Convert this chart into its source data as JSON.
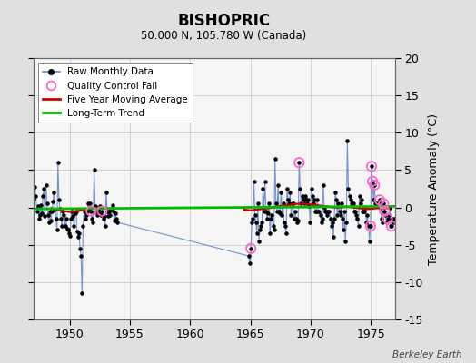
{
  "title": "BISHOPRIC",
  "subtitle": "50.000 N, 105.780 W (Canada)",
  "ylabel": "Temperature Anomaly (°C)",
  "watermark": "Berkeley Earth",
  "ylim": [
    -15,
    20
  ],
  "yticks": [
    -15,
    -10,
    -5,
    0,
    5,
    10,
    15,
    20
  ],
  "xlim": [
    1947,
    1977
  ],
  "xticks": [
    1950,
    1955,
    1960,
    1965,
    1970,
    1975
  ],
  "bg_color": "#e0e0e0",
  "plot_bg": "#f5f5f5",
  "raw_line_color": "#6688cc",
  "raw_dot_color": "#000000",
  "ma_color": "#cc0000",
  "trend_color": "#00bb00",
  "qc_color": "#ff66cc",
  "raw_monthly": [
    [
      1947.042,
      1.2
    ],
    [
      1947.125,
      2.8
    ],
    [
      1947.208,
      1.5
    ],
    [
      1947.292,
      -0.5
    ],
    [
      1947.375,
      0.2
    ],
    [
      1947.458,
      -1.5
    ],
    [
      1947.542,
      -1.0
    ],
    [
      1947.625,
      0.3
    ],
    [
      1947.708,
      -0.8
    ],
    [
      1947.792,
      1.5
    ],
    [
      1947.875,
      2.5
    ],
    [
      1947.958,
      -1.2
    ],
    [
      1948.042,
      3.0
    ],
    [
      1948.125,
      0.5
    ],
    [
      1948.208,
      -1.0
    ],
    [
      1948.292,
      -2.0
    ],
    [
      1948.375,
      -0.5
    ],
    [
      1948.458,
      -1.8
    ],
    [
      1948.542,
      -0.5
    ],
    [
      1948.625,
      0.8
    ],
    [
      1948.708,
      2.0
    ],
    [
      1948.792,
      -0.3
    ],
    [
      1948.875,
      -1.5
    ],
    [
      1948.958,
      -3.0
    ],
    [
      1949.042,
      6.0
    ],
    [
      1949.125,
      1.0
    ],
    [
      1949.208,
      -0.2
    ],
    [
      1949.292,
      -1.5
    ],
    [
      1949.375,
      -2.5
    ],
    [
      1949.458,
      -0.5
    ],
    [
      1949.542,
      -1.0
    ],
    [
      1949.625,
      -2.5
    ],
    [
      1949.708,
      -1.5
    ],
    [
      1949.792,
      -2.8
    ],
    [
      1949.875,
      -3.0
    ],
    [
      1949.958,
      -3.5
    ],
    [
      1950.042,
      -3.8
    ],
    [
      1950.125,
      -1.5
    ],
    [
      1950.208,
      -0.5
    ],
    [
      1950.292,
      -1.2
    ],
    [
      1950.375,
      -2.5
    ],
    [
      1950.458,
      -0.8
    ],
    [
      1950.542,
      -0.5
    ],
    [
      1950.625,
      -3.2
    ],
    [
      1950.708,
      -4.0
    ],
    [
      1950.792,
      -3.5
    ],
    [
      1950.875,
      -5.5
    ],
    [
      1950.958,
      -6.5
    ],
    [
      1951.042,
      -11.5
    ],
    [
      1951.125,
      -2.5
    ],
    [
      1951.208,
      -0.5
    ],
    [
      1951.292,
      -1.5
    ],
    [
      1951.375,
      -1.0
    ],
    [
      1951.458,
      -0.5
    ],
    [
      1951.542,
      0.5
    ],
    [
      1951.625,
      -0.2
    ],
    [
      1951.708,
      0.5
    ],
    [
      1951.792,
      -0.5
    ],
    [
      1951.875,
      -1.5
    ],
    [
      1951.958,
      -2.0
    ],
    [
      1952.042,
      5.0
    ],
    [
      1952.125,
      0.2
    ],
    [
      1952.208,
      -0.5
    ],
    [
      1952.292,
      -1.0
    ],
    [
      1952.375,
      -0.3
    ],
    [
      1952.458,
      -0.8
    ],
    [
      1952.542,
      0.2
    ],
    [
      1952.625,
      -1.0
    ],
    [
      1952.708,
      -0.5
    ],
    [
      1952.792,
      -1.5
    ],
    [
      1952.875,
      -1.2
    ],
    [
      1952.958,
      -2.5
    ],
    [
      1953.042,
      2.0
    ],
    [
      1953.125,
      -0.5
    ],
    [
      1953.208,
      -1.2
    ],
    [
      1953.292,
      -0.5
    ],
    [
      1953.375,
      -1.0
    ],
    [
      1953.458,
      -0.3
    ],
    [
      1953.542,
      0.3
    ],
    [
      1953.625,
      -0.5
    ],
    [
      1953.708,
      -1.8
    ],
    [
      1953.792,
      -0.8
    ],
    [
      1953.875,
      -1.5
    ],
    [
      1953.958,
      -2.0
    ],
    [
      1964.875,
      -6.5
    ],
    [
      1964.958,
      -7.5
    ],
    [
      1965.042,
      -5.5
    ],
    [
      1965.125,
      -2.0
    ],
    [
      1965.208,
      -1.5
    ],
    [
      1965.292,
      3.5
    ],
    [
      1965.375,
      -1.0
    ],
    [
      1965.458,
      -2.0
    ],
    [
      1965.542,
      -3.5
    ],
    [
      1965.625,
      0.5
    ],
    [
      1965.708,
      -4.5
    ],
    [
      1965.792,
      -3.0
    ],
    [
      1965.875,
      -2.5
    ],
    [
      1965.958,
      -2.0
    ],
    [
      1966.042,
      2.5
    ],
    [
      1966.125,
      -0.5
    ],
    [
      1966.208,
      3.5
    ],
    [
      1966.292,
      -0.5
    ],
    [
      1966.375,
      -1.5
    ],
    [
      1966.458,
      -0.8
    ],
    [
      1966.542,
      0.5
    ],
    [
      1966.625,
      -3.5
    ],
    [
      1966.708,
      -1.5
    ],
    [
      1966.792,
      -1.0
    ],
    [
      1966.875,
      -2.5
    ],
    [
      1966.958,
      -3.0
    ],
    [
      1967.042,
      6.5
    ],
    [
      1967.125,
      0.5
    ],
    [
      1967.208,
      -0.5
    ],
    [
      1967.292,
      3.0
    ],
    [
      1967.375,
      -0.5
    ],
    [
      1967.458,
      -0.8
    ],
    [
      1967.542,
      2.0
    ],
    [
      1967.625,
      -1.0
    ],
    [
      1967.708,
      0.5
    ],
    [
      1967.792,
      -2.0
    ],
    [
      1967.875,
      -2.5
    ],
    [
      1967.958,
      -3.5
    ],
    [
      1968.042,
      2.5
    ],
    [
      1968.125,
      1.0
    ],
    [
      1968.208,
      0.5
    ],
    [
      1968.292,
      2.0
    ],
    [
      1968.375,
      -1.0
    ],
    [
      1968.458,
      0.5
    ],
    [
      1968.542,
      0.5
    ],
    [
      1968.625,
      -1.5
    ],
    [
      1968.708,
      -0.5
    ],
    [
      1968.792,
      -1.5
    ],
    [
      1968.875,
      -2.0
    ],
    [
      1968.958,
      -1.8
    ],
    [
      1969.042,
      6.0
    ],
    [
      1969.125,
      2.5
    ],
    [
      1969.208,
      0.5
    ],
    [
      1969.292,
      1.5
    ],
    [
      1969.375,
      1.0
    ],
    [
      1969.458,
      0.5
    ],
    [
      1969.542,
      1.5
    ],
    [
      1969.625,
      1.0
    ],
    [
      1969.708,
      0.5
    ],
    [
      1969.792,
      1.0
    ],
    [
      1969.875,
      0.2
    ],
    [
      1969.958,
      -2.0
    ],
    [
      1970.042,
      2.5
    ],
    [
      1970.125,
      1.5
    ],
    [
      1970.208,
      0.5
    ],
    [
      1970.292,
      1.0
    ],
    [
      1970.375,
      -0.5
    ],
    [
      1970.458,
      -0.5
    ],
    [
      1970.542,
      1.0
    ],
    [
      1970.625,
      -0.5
    ],
    [
      1970.708,
      -0.5
    ],
    [
      1970.792,
      -1.0
    ],
    [
      1970.875,
      -2.0
    ],
    [
      1970.958,
      -1.5
    ],
    [
      1971.042,
      3.0
    ],
    [
      1971.125,
      0.0
    ],
    [
      1971.208,
      -0.5
    ],
    [
      1971.292,
      -0.5
    ],
    [
      1971.375,
      -1.0
    ],
    [
      1971.458,
      -0.5
    ],
    [
      1971.542,
      -0.5
    ],
    [
      1971.625,
      -1.5
    ],
    [
      1971.708,
      -2.5
    ],
    [
      1971.792,
      -2.0
    ],
    [
      1971.875,
      -4.0
    ],
    [
      1971.958,
      -1.5
    ],
    [
      1972.042,
      2.0
    ],
    [
      1972.125,
      1.0
    ],
    [
      1972.208,
      -1.0
    ],
    [
      1972.292,
      0.5
    ],
    [
      1972.375,
      -0.5
    ],
    [
      1972.458,
      -1.0
    ],
    [
      1972.542,
      0.5
    ],
    [
      1972.625,
      -1.5
    ],
    [
      1972.708,
      -3.0
    ],
    [
      1972.792,
      -0.5
    ],
    [
      1972.875,
      -4.5
    ],
    [
      1972.958,
      -2.0
    ],
    [
      1973.042,
      9.0
    ],
    [
      1973.125,
      2.5
    ],
    [
      1973.208,
      1.5
    ],
    [
      1973.292,
      1.0
    ],
    [
      1973.375,
      0.5
    ],
    [
      1973.458,
      0.5
    ],
    [
      1973.542,
      0.5
    ],
    [
      1973.625,
      -0.5
    ],
    [
      1973.708,
      -0.5
    ],
    [
      1973.792,
      -1.0
    ],
    [
      1973.875,
      -1.5
    ],
    [
      1973.958,
      -2.5
    ],
    [
      1974.042,
      1.5
    ],
    [
      1974.125,
      0.5
    ],
    [
      1974.208,
      1.0
    ],
    [
      1974.292,
      -0.5
    ],
    [
      1974.375,
      -0.5
    ],
    [
      1974.458,
      -0.5
    ],
    [
      1974.542,
      0.0
    ],
    [
      1974.625,
      -2.0
    ],
    [
      1974.708,
      -1.0
    ],
    [
      1974.792,
      -2.5
    ],
    [
      1974.875,
      -4.5
    ],
    [
      1974.958,
      -2.5
    ],
    [
      1975.042,
      5.5
    ],
    [
      1975.125,
      3.5
    ],
    [
      1975.208,
      1.0
    ],
    [
      1975.292,
      3.0
    ],
    [
      1975.375,
      0.5
    ],
    [
      1975.458,
      0.5
    ],
    [
      1975.542,
      0.5
    ],
    [
      1975.625,
      0.5
    ],
    [
      1975.708,
      1.0
    ],
    [
      1975.792,
      0.0
    ],
    [
      1975.875,
      -1.5
    ],
    [
      1975.958,
      -2.0
    ],
    [
      1976.042,
      0.5
    ],
    [
      1976.125,
      -0.5
    ],
    [
      1976.208,
      -1.0
    ],
    [
      1976.292,
      -2.0
    ],
    [
      1976.375,
      -1.5
    ],
    [
      1976.458,
      -1.0
    ],
    [
      1976.542,
      0.0
    ],
    [
      1976.625,
      -2.5
    ],
    [
      1976.708,
      -2.5
    ],
    [
      1976.792,
      -1.5
    ],
    [
      1976.875,
      -2.0
    ],
    [
      1976.958,
      -1.5
    ]
  ],
  "qc_fails": [
    [
      1951.792,
      -0.5
    ],
    [
      1952.708,
      -0.5
    ],
    [
      1965.042,
      -5.5
    ],
    [
      1969.042,
      6.0
    ],
    [
      1974.958,
      -2.5
    ],
    [
      1975.042,
      5.5
    ],
    [
      1975.125,
      3.5
    ],
    [
      1975.292,
      3.0
    ],
    [
      1975.708,
      1.0
    ],
    [
      1976.042,
      0.5
    ],
    [
      1976.125,
      -0.5
    ],
    [
      1976.375,
      -1.5
    ],
    [
      1976.708,
      -2.5
    ]
  ],
  "moving_avg_1": [
    [
      1948.5,
      -0.1
    ],
    [
      1949.0,
      -0.3
    ],
    [
      1949.5,
      -0.5
    ],
    [
      1950.0,
      -0.6
    ],
    [
      1950.5,
      -0.5
    ],
    [
      1951.0,
      -0.4
    ],
    [
      1951.5,
      -0.2
    ],
    [
      1952.0,
      -0.1
    ],
    [
      1952.5,
      0.0
    ]
  ],
  "moving_avg_2": [
    [
      1964.5,
      -0.3
    ],
    [
      1965.0,
      -0.4
    ],
    [
      1965.5,
      -0.3
    ],
    [
      1966.0,
      -0.2
    ],
    [
      1966.5,
      -0.1
    ],
    [
      1967.0,
      0.0
    ],
    [
      1967.5,
      0.2
    ],
    [
      1968.0,
      0.3
    ],
    [
      1968.5,
      0.4
    ],
    [
      1969.0,
      0.5
    ],
    [
      1969.5,
      0.5
    ],
    [
      1970.0,
      0.4
    ],
    [
      1970.5,
      0.3
    ],
    [
      1971.0,
      0.2
    ],
    [
      1971.5,
      0.1
    ],
    [
      1972.0,
      0.0
    ],
    [
      1972.5,
      0.0
    ],
    [
      1973.0,
      0.1
    ],
    [
      1973.5,
      0.0
    ],
    [
      1974.0,
      -0.1
    ],
    [
      1974.5,
      -0.2
    ],
    [
      1975.0,
      -0.2
    ],
    [
      1975.5,
      -0.1
    ],
    [
      1976.0,
      -0.1
    ],
    [
      1976.5,
      -0.1
    ]
  ],
  "trend_x": [
    1947,
    1977
  ],
  "trend_y": [
    -0.2,
    0.15
  ]
}
